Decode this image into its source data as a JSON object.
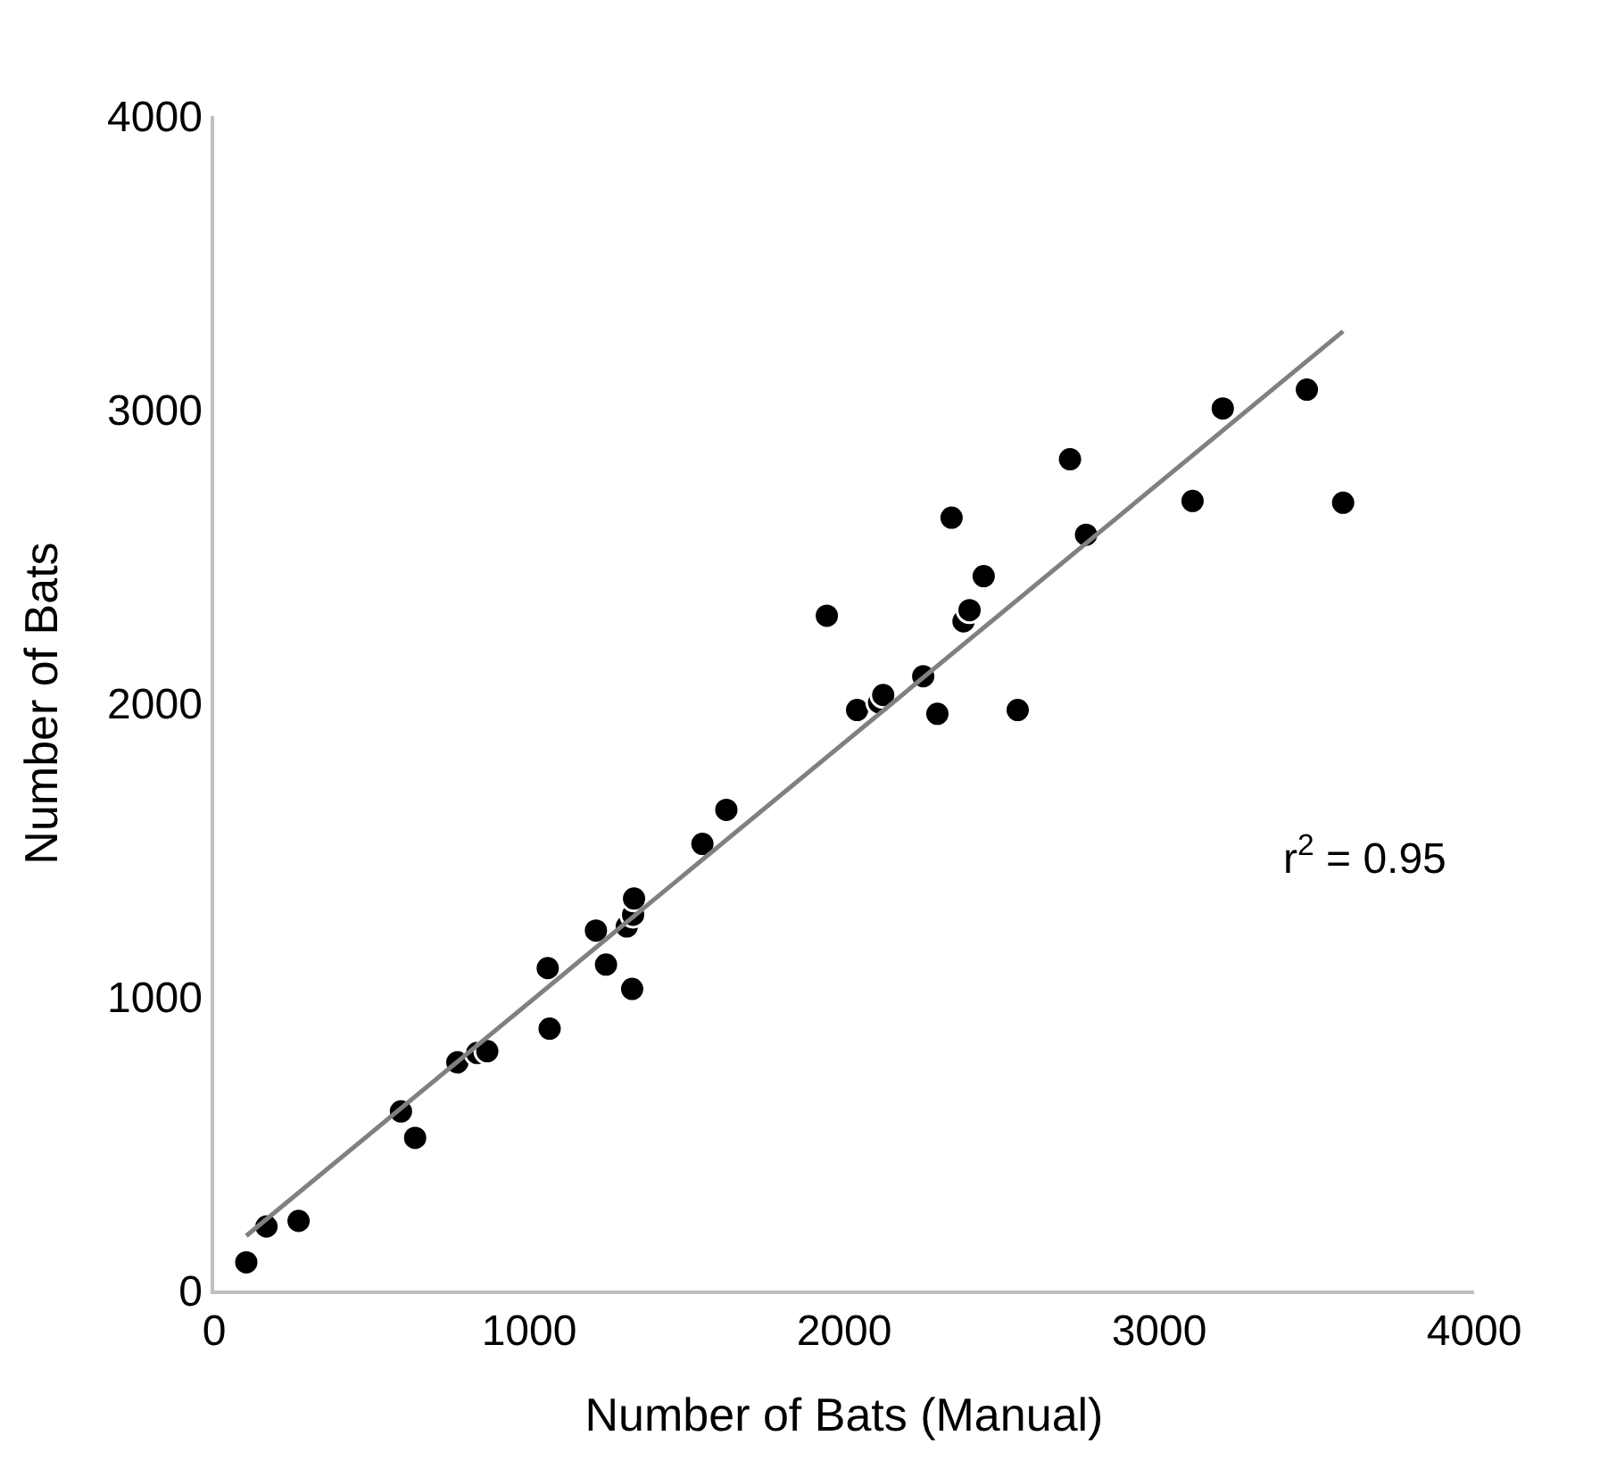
{
  "chart_data": {
    "type": "scatter",
    "xlabel": "Number of Bats (Manual)",
    "ylabel": "Number of Bats",
    "xlim": [
      0,
      4000
    ],
    "xticks": [
      0,
      1000,
      2000,
      3000,
      4000
    ],
    "ylim": [
      0,
      4000
    ],
    "yticks": [
      0,
      1000,
      2000,
      3000,
      4000
    ],
    "annotations": [
      "r$^{2}$ = 0.95"
    ],
    "series": [
      {
        "color": "#000000",
        "marker": "circle",
        "x": [
          102,
          166,
          268,
          593,
          638,
          772,
          835,
          867,
          1059,
          1065,
          1212,
          1244,
          1327,
          1310,
          1330,
          1333,
          1550,
          1626,
          1945,
          2041,
          2111,
          2124,
          2251,
          2296,
          2551,
          2379,
          2398,
          2443,
          2341,
          2717,
          2768,
          3106,
          3202,
          3469,
          3584
        ],
        "values": [
          96,
          218,
          237,
          610,
          520,
          777,
          809,
          815,
          1098,
          892,
          1226,
          1110,
          1027,
          1240,
          1280,
          1335,
          1521,
          1637,
          2298,
          1977,
          2003,
          2028,
          2092,
          1964,
          1977,
          2279,
          2317,
          2433,
          2632,
          2831,
          2574,
          2689,
          3004,
          3068,
          2683
        ]
      },
      {
        "type": "line",
        "color": "#808080",
        "line_style": "solid",
        "x": [
          102,
          3584
        ],
        "values": [
          186,
          3267
        ]
      }
    ]
  }
}
